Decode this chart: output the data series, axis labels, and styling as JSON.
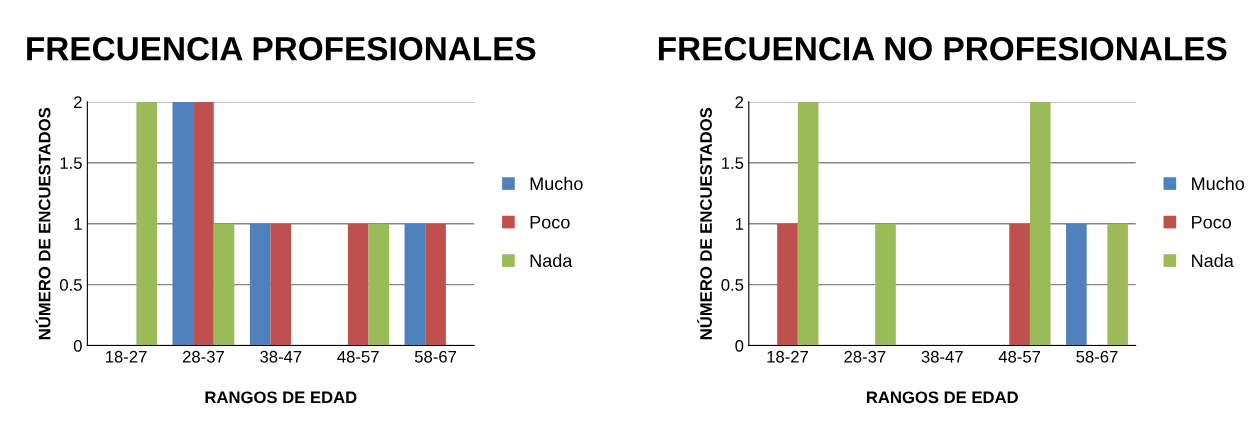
{
  "chart_data": [
    {
      "type": "bar",
      "title": "FRECUENCIA PROFESIONALES",
      "xlabel": "RANGOS DE EDAD",
      "ylabel": "NÚMERO DE ENCUESTADOS",
      "categories": [
        "18-27",
        "28-37",
        "38-47",
        "48-57",
        "58-67"
      ],
      "ylim": [
        0,
        2
      ],
      "yticks": [
        0,
        0.5,
        1,
        1.5,
        2
      ],
      "grid": "y",
      "legend": "right",
      "series": [
        {
          "name": "Mucho",
          "color": "#4f81bd",
          "values": [
            0,
            2,
            1,
            0,
            1
          ]
        },
        {
          "name": "Poco",
          "color": "#c0504d",
          "values": [
            0,
            2,
            1,
            1,
            1
          ]
        },
        {
          "name": "Nada",
          "color": "#9bbb59",
          "values": [
            2,
            1,
            0,
            1,
            0
          ]
        }
      ]
    },
    {
      "type": "bar",
      "title": "FRECUENCIA NO PROFESIONALES",
      "xlabel": "RANGOS DE EDAD",
      "ylabel": "NÚMERO DE ENCUESTADOS",
      "categories": [
        "18-27",
        "28-37",
        "38-47",
        "48-57",
        "58-67"
      ],
      "ylim": [
        0,
        2
      ],
      "yticks": [
        0,
        0.5,
        1,
        1.5,
        2
      ],
      "grid": "y",
      "legend": "right",
      "series": [
        {
          "name": "Mucho",
          "color": "#4f81bd",
          "values": [
            0,
            0,
            0,
            0,
            1
          ]
        },
        {
          "name": "Poco",
          "color": "#c0504d",
          "values": [
            1,
            0,
            0,
            1,
            0
          ]
        },
        {
          "name": "Nada",
          "color": "#9bbb59",
          "values": [
            2,
            1,
            0,
            2,
            1
          ]
        }
      ]
    }
  ]
}
